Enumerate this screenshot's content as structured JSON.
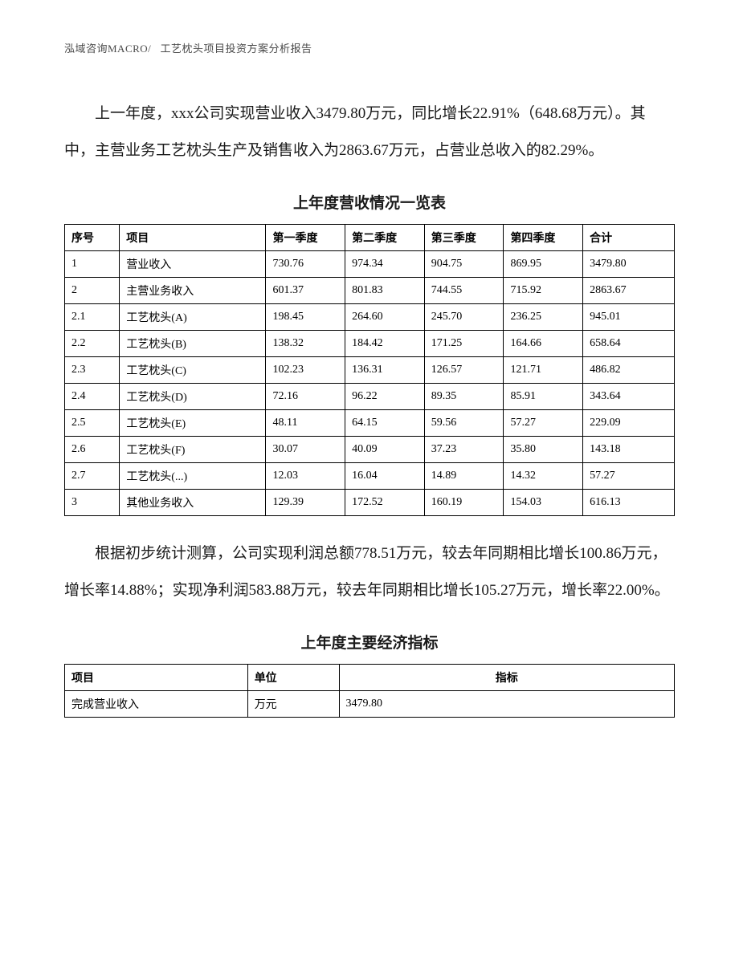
{
  "header": {
    "left": "泓域咨询MACRO/",
    "right": "工艺枕头项目投资方案分析报告"
  },
  "paragraph1": "上一年度，xxx公司实现营业收入3479.80万元，同比增长22.91%（648.68万元）。其中，主营业务工艺枕头生产及销售收入为2863.67万元，占营业总收入的82.29%。",
  "table1": {
    "title": "上年度营收情况一览表",
    "columns": [
      "序号",
      "项目",
      "第一季度",
      "第二季度",
      "第三季度",
      "第四季度",
      "合计"
    ],
    "rows": [
      [
        "1",
        "营业收入",
        "730.76",
        "974.34",
        "904.75",
        "869.95",
        "3479.80"
      ],
      [
        "2",
        "主营业务收入",
        "601.37",
        "801.83",
        "744.55",
        "715.92",
        "2863.67"
      ],
      [
        "2.1",
        "工艺枕头(A)",
        "198.45",
        "264.60",
        "245.70",
        "236.25",
        "945.01"
      ],
      [
        "2.2",
        "工艺枕头(B)",
        "138.32",
        "184.42",
        "171.25",
        "164.66",
        "658.64"
      ],
      [
        "2.3",
        "工艺枕头(C)",
        "102.23",
        "136.31",
        "126.57",
        "121.71",
        "486.82"
      ],
      [
        "2.4",
        "工艺枕头(D)",
        "72.16",
        "96.22",
        "89.35",
        "85.91",
        "343.64"
      ],
      [
        "2.5",
        "工艺枕头(E)",
        "48.11",
        "64.15",
        "59.56",
        "57.27",
        "229.09"
      ],
      [
        "2.6",
        "工艺枕头(F)",
        "30.07",
        "40.09",
        "37.23",
        "35.80",
        "143.18"
      ],
      [
        "2.7",
        "工艺枕头(...)",
        "12.03",
        "16.04",
        "14.89",
        "14.32",
        "57.27"
      ],
      [
        "3",
        "其他业务收入",
        "129.39",
        "172.52",
        "160.19",
        "154.03",
        "616.13"
      ]
    ]
  },
  "paragraph2": "根据初步统计测算，公司实现利润总额778.51万元，较去年同期相比增长100.86万元，增长率14.88%；实现净利润583.88万元，较去年同期相比增长105.27万元，增长率22.00%。",
  "table2": {
    "title": "上年度主要经济指标",
    "columns": [
      "项目",
      "单位",
      "指标"
    ],
    "rows": [
      [
        "完成营业收入",
        "万元",
        "3479.80"
      ]
    ]
  }
}
